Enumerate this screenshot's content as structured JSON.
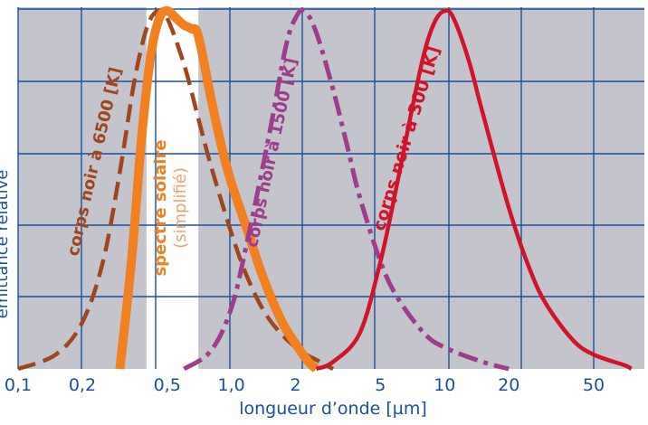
{
  "chart_data": {
    "type": "line",
    "xlabel": "longueur d’onde [µm]",
    "ylabel": "émittance relative",
    "x_scale": "log",
    "x_ticks": [
      {
        "value": 0.1,
        "label": "0,1"
      },
      {
        "value": 0.2,
        "label": "0,2"
      },
      {
        "value": 0.5,
        "label": "0,5"
      },
      {
        "value": 1.0,
        "label": "1,0"
      },
      {
        "value": 2,
        "label": "2"
      },
      {
        "value": 5,
        "label": "5"
      },
      {
        "value": 10,
        "label": "10"
      },
      {
        "value": 20,
        "label": "20"
      },
      {
        "value": 50,
        "label": "50"
      }
    ],
    "xlim": [
      0.085,
      85
    ],
    "ylim": [
      0,
      1
    ],
    "grid": true,
    "visible_band": {
      "from": 0.4,
      "to": 0.7
    },
    "series": [
      {
        "name": "corps noir à 6500 [K]",
        "color": "#a0461e",
        "style": "dashed",
        "points": [
          [
            0.1,
            0.0
          ],
          [
            0.15,
            0.04
          ],
          [
            0.2,
            0.13
          ],
          [
            0.25,
            0.3
          ],
          [
            0.3,
            0.55
          ],
          [
            0.35,
            0.8
          ],
          [
            0.4,
            0.95
          ],
          [
            0.45,
            1.0
          ],
          [
            0.5,
            0.98
          ],
          [
            0.6,
            0.85
          ],
          [
            0.7,
            0.7
          ],
          [
            0.8,
            0.57
          ],
          [
            1.0,
            0.38
          ],
          [
            1.2,
            0.25
          ],
          [
            1.5,
            0.14
          ],
          [
            2.0,
            0.06
          ],
          [
            2.6,
            0.02
          ],
          [
            3.0,
            0.0
          ]
        ]
      },
      {
        "name": "spectre solaire",
        "name_sub": "(simplifié)",
        "color": "#f08020",
        "style": "solid-thick",
        "points": [
          [
            0.3,
            0.0
          ],
          [
            0.34,
            0.3
          ],
          [
            0.38,
            0.65
          ],
          [
            0.42,
            0.88
          ],
          [
            0.46,
            0.98
          ],
          [
            0.5,
            1.0
          ],
          [
            0.55,
            0.98
          ],
          [
            0.6,
            0.96
          ],
          [
            0.65,
            0.95
          ],
          [
            0.7,
            0.93
          ],
          [
            0.8,
            0.76
          ],
          [
            0.9,
            0.62
          ],
          [
            1.0,
            0.52
          ],
          [
            1.2,
            0.38
          ],
          [
            1.4,
            0.26
          ],
          [
            1.7,
            0.14
          ],
          [
            2.0,
            0.07
          ],
          [
            2.3,
            0.02
          ],
          [
            2.5,
            0.0
          ]
        ]
      },
      {
        "name": "corps noir à 1500 [K]",
        "color": "#a03c8c",
        "style": "dashdot",
        "points": [
          [
            0.6,
            0.0
          ],
          [
            0.8,
            0.05
          ],
          [
            1.0,
            0.17
          ],
          [
            1.2,
            0.37
          ],
          [
            1.5,
            0.65
          ],
          [
            1.8,
            0.9
          ],
          [
            2.0,
            0.98
          ],
          [
            2.2,
            1.0
          ],
          [
            2.5,
            0.94
          ],
          [
            3.0,
            0.78
          ],
          [
            3.5,
            0.62
          ],
          [
            4.0,
            0.48
          ],
          [
            5.0,
            0.3
          ],
          [
            6.0,
            0.2
          ],
          [
            8.0,
            0.1
          ],
          [
            10.0,
            0.06
          ],
          [
            15.0,
            0.02
          ],
          [
            20.0,
            0.0
          ]
        ]
      },
      {
        "name": "corps noir à 300 [K]",
        "color": "#d0142a",
        "style": "solid",
        "points": [
          [
            2.5,
            0.0
          ],
          [
            3.0,
            0.02
          ],
          [
            4.0,
            0.1
          ],
          [
            5.0,
            0.3
          ],
          [
            6.0,
            0.52
          ],
          [
            7.0,
            0.72
          ],
          [
            8.0,
            0.88
          ],
          [
            9.0,
            0.97
          ],
          [
            10.0,
            1.0
          ],
          [
            11.0,
            0.98
          ],
          [
            13.0,
            0.86
          ],
          [
            15.0,
            0.72
          ],
          [
            20.0,
            0.45
          ],
          [
            25.0,
            0.28
          ],
          [
            30.0,
            0.18
          ],
          [
            40.0,
            0.08
          ],
          [
            50.0,
            0.04
          ],
          [
            70.0,
            0.01
          ],
          [
            75.0,
            0.0
          ]
        ]
      }
    ]
  }
}
